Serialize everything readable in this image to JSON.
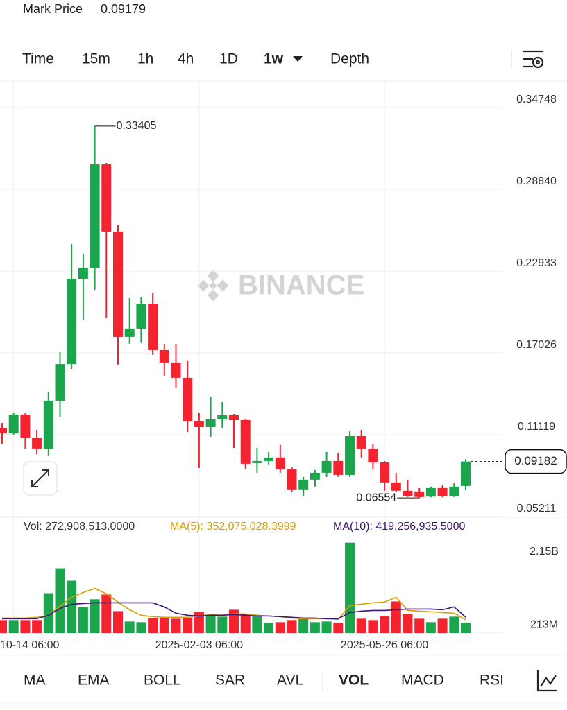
{
  "header": {
    "mark_price_label": "Mark Price",
    "mark_price": "0.09179"
  },
  "timeframes": {
    "items": [
      "Time",
      "15m",
      "1h",
      "4h",
      "1D",
      "1w",
      "Depth"
    ],
    "active": 5
  },
  "indicators": {
    "items": [
      "MA",
      "EMA",
      "BOLL",
      "SAR",
      "AVL",
      "VOL",
      "MACD",
      "RSI"
    ],
    "active": 5
  },
  "watermark": "BINANCE",
  "chart_data": [
    {
      "type": "candlestick",
      "categories": [
        null,
        "10-14 06:00",
        null,
        null,
        null,
        null,
        null,
        null,
        null,
        null,
        null,
        null,
        null,
        null,
        null,
        null,
        null,
        "2025-02-03 06:00",
        null,
        null,
        null,
        null,
        null,
        null,
        null,
        null,
        null,
        null,
        null,
        null,
        null,
        null,
        null,
        "2025-05-26 06:00",
        null,
        null,
        null,
        null,
        null,
        null,
        null
      ],
      "open": [
        0.1162,
        0.1122,
        0.1257,
        0.1087,
        0.1007,
        0.1357,
        0.1622,
        0.2238,
        0.2318,
        0.3064,
        0.2579,
        0.1818,
        0.1878,
        0.2058,
        0.1723,
        0.1633,
        0.1523,
        0.1212,
        0.1167,
        0.1222,
        0.1252,
        0.1217,
        0.0907,
        0.0922,
        0.0947,
        0.0862,
        0.0717,
        0.0787,
        0.0837,
        0.0922,
        0.0822,
        0.1102,
        0.1012,
        0.0912,
        0.0767,
        0.0707,
        0.0702,
        0.0665,
        0.0727,
        0.0667,
        0.0742
      ],
      "high": [
        0.1197,
        0.1272,
        0.1267,
        0.1147,
        0.1422,
        0.1707,
        0.2489,
        0.2418,
        0.33405,
        0.3074,
        0.2629,
        0.2098,
        0.2108,
        0.2138,
        0.1768,
        0.1768,
        0.1648,
        0.1272,
        0.1387,
        0.1347,
        0.1262,
        0.1227,
        0.1017,
        0.0987,
        0.1037,
        0.0877,
        0.0807,
        0.0857,
        0.0987,
        0.0977,
        0.1137,
        0.1147,
        0.1047,
        0.0922,
        0.0837,
        0.0787,
        0.0727,
        0.0737,
        0.0747,
        0.0762,
        0.0935
      ],
      "low": [
        0.1047,
        0.1112,
        0.1007,
        0.0972,
        0.0962,
        0.1237,
        0.1587,
        0.1938,
        0.2158,
        0.1958,
        0.1618,
        0.1768,
        0.1778,
        0.1688,
        0.1538,
        0.1447,
        0.1132,
        0.0872,
        0.1097,
        0.1162,
        0.1017,
        0.0867,
        0.0837,
        0.0897,
        0.0837,
        0.0697,
        0.0667,
        0.0737,
        0.0807,
        0.0807,
        0.0807,
        0.0947,
        0.0862,
        0.0707,
        0.0697,
        0.0662,
        0.06554,
        0.066,
        0.066,
        0.0662,
        0.0712
      ],
      "close": [
        0.1122,
        0.1257,
        0.1087,
        0.1012,
        0.1357,
        0.1622,
        0.2238,
        0.2318,
        0.3064,
        0.2579,
        0.1818,
        0.1878,
        0.2058,
        0.1723,
        0.1633,
        0.1523,
        0.1212,
        0.1167,
        0.1222,
        0.1252,
        0.1217,
        0.0902,
        0.0922,
        0.0947,
        0.0862,
        0.0717,
        0.0787,
        0.0837,
        0.0922,
        0.0822,
        0.1102,
        0.1012,
        0.0912,
        0.0767,
        0.0707,
        0.0667,
        0.0662,
        0.0727,
        0.0667,
        0.0737,
        0.09182
      ],
      "up_color": "#1ba54c",
      "down_color": "#f4232f",
      "ylim": [
        0.0516,
        0.366
      ],
      "yticks": [
        0.34748,
        {
          "value": 0.2884,
          "label": "0.28840"
        },
        0.22933,
        0.17026,
        0.11119,
        0.05211
      ],
      "grid": true
    },
    {
      "type": "bar",
      "ylim": [
        0,
        3060000000
      ],
      "yticks": [
        {
          "value": 2150000000,
          "label": "2.15B"
        },
        {
          "value": 213000000,
          "label": "213M"
        }
      ],
      "grid": false,
      "series": [
        {
          "label": "Vol: 272,908,513.0000",
          "type": "bar",
          "color": "#333333",
          "values": [
            342000000.0,
            342000000.0,
            342000000.0,
            342000000.0,
            1054000000.0,
            1712000000.0,
            1383000000.0,
            691000000.0,
            892000000.0,
            1018000000.0,
            579000000.0,
            305000000.0,
            287000000.0,
            396000000.0,
            396000000.0,
            378000000.0,
            396000000.0,
            561000000.0,
            488000000.0,
            433000000.0,
            616000000.0,
            506000000.0,
            451000000.0,
            269000000.0,
            287000000.0,
            342000000.0,
            396000000.0,
            287000000.0,
            305000000.0,
            269000000.0,
            2388000000.0,
            378000000.0,
            342000000.0,
            451000000.0,
            835000000.0,
            506000000.0,
            378000000.0,
            287000000.0,
            378000000.0,
            433000000.0,
            272908513
          ]
        },
        {
          "label": "MA(5): 352,075,028.3999",
          "type": "line",
          "color": "#d9a000",
          "values": [
            396000000.0,
            396000000.0,
            396000000.0,
            415000000.0,
            470000000.0,
            707000000.0,
            945000000.0,
            1072000000.0,
            1182000000.0,
            1036000000.0,
            817000000.0,
            616000000.0,
            470000000.0,
            433000000.0,
            415000000.0,
            415000000.0,
            415000000.0,
            451000000.0,
            488000000.0,
            470000000.0,
            506000000.0,
            506000000.0,
            470000000.0,
            451000000.0,
            433000000.0,
            396000000.0,
            378000000.0,
            378000000.0,
            378000000.0,
            360000000.0,
            725000000.0,
            762000000.0,
            798000000.0,
            817000000.0,
            945000000.0,
            597000000.0,
            579000000.0,
            561000000.0,
            542000000.0,
            524000000.0,
            352075028.3999
          ]
        },
        {
          "label": "MA(10): 419,256,935.5000",
          "type": "line",
          "color": "#3b1675",
          "values": [
            378000000.0,
            378000000.0,
            378000000.0,
            378000000.0,
            470000000.0,
            652000000.0,
            762000000.0,
            780000000.0,
            798000000.0,
            798000000.0,
            798000000.0,
            798000000.0,
            798000000.0,
            798000000.0,
            689000000.0,
            524000000.0,
            470000000.0,
            451000000.0,
            470000000.0,
            470000000.0,
            488000000.0,
            470000000.0,
            451000000.0,
            451000000.0,
            433000000.0,
            415000000.0,
            396000000.0,
            396000000.0,
            378000000.0,
            378000000.0,
            542000000.0,
            579000000.0,
            597000000.0,
            597000000.0,
            616000000.0,
            634000000.0,
            634000000.0,
            634000000.0,
            616000000.0,
            689000000.0,
            419256935.5
          ]
        }
      ]
    }
  ]
}
